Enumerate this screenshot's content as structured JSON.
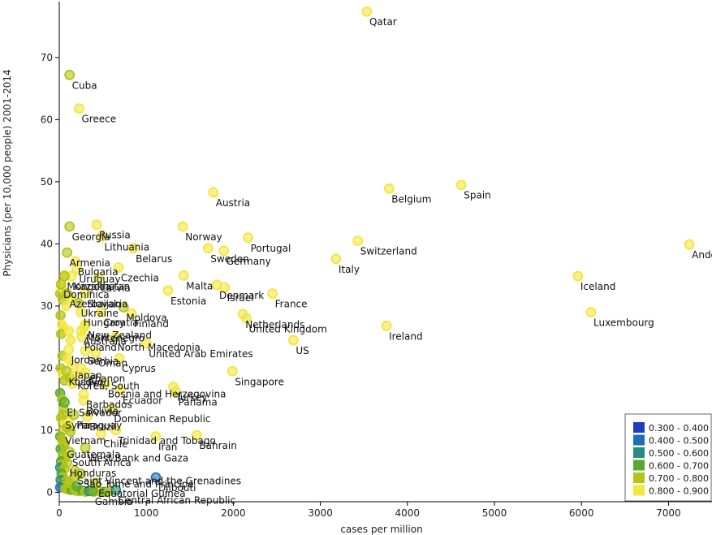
{
  "chart_data": {
    "type": "scatter",
    "title": "",
    "xlabel": "cases per million",
    "ylabel": "Physicians (per 10,000 people) 2001-2014",
    "xlim": [
      0,
      7500
    ],
    "ylim": [
      -1.5,
      79
    ],
    "xticks": [
      0,
      1000,
      2000,
      3000,
      4000,
      5000,
      6000,
      7000
    ],
    "yticks": [
      0,
      10,
      20,
      30,
      40,
      50,
      60,
      70
    ],
    "grid": false,
    "legend_position": "bottom-right",
    "legend": [
      {
        "label": "0.300 - 0.400",
        "color": "#1f3fbf"
      },
      {
        "label": "0.400 - 0.500",
        "color": "#1f6fb4"
      },
      {
        "label": "0.500 - 0.600",
        "color": "#2a8c7f"
      },
      {
        "label": "0.600 - 0.700",
        "color": "#57a82c"
      },
      {
        "label": "0.700 - 0.800",
        "color": "#b5c417"
      },
      {
        "label": "0.800 - 0.900",
        "color": "#f2e640"
      }
    ],
    "points": [
      {
        "label": "Qatar",
        "x": 3535,
        "y": 77.4,
        "c": 5
      },
      {
        "label": "Cuba",
        "x": 118,
        "y": 67.2,
        "c": 4
      },
      {
        "label": "Greece",
        "x": 228,
        "y": 61.8,
        "c": 5
      },
      {
        "label": "Spain",
        "x": 4620,
        "y": 49.5,
        "c": 5
      },
      {
        "label": "Belgium",
        "x": 3790,
        "y": 48.9,
        "c": 5
      },
      {
        "label": "Austria",
        "x": 1770,
        "y": 48.3,
        "c": 5
      },
      {
        "label": "Georgia",
        "x": 118,
        "y": 42.8,
        "c": 4
      },
      {
        "label": "Russia",
        "x": 430,
        "y": 43.1,
        "c": 5
      },
      {
        "label": "Norway",
        "x": 1420,
        "y": 42.8,
        "c": 5
      },
      {
        "label": "Lithuania",
        "x": 490,
        "y": 41.2,
        "c": 5
      },
      {
        "label": "Portugal",
        "x": 2170,
        "y": 41.0,
        "c": 5
      },
      {
        "label": "Switzerland",
        "x": 3430,
        "y": 40.5,
        "c": 5
      },
      {
        "label": "Andor",
        "x": 7240,
        "y": 39.9,
        "c": 5
      },
      {
        "label": "Belarus",
        "x": 850,
        "y": 39.3,
        "c": 5
      },
      {
        "label": "Sweden",
        "x": 1710,
        "y": 39.3,
        "c": 5
      },
      {
        "label": "Germany",
        "x": 1890,
        "y": 38.9,
        "c": 5
      },
      {
        "label": "Armenia",
        "x": 90,
        "y": 38.6,
        "c": 4
      },
      {
        "label": "Italy",
        "x": 3180,
        "y": 37.6,
        "c": 5
      },
      {
        "label": "Bulgaria",
        "x": 185,
        "y": 37.2,
        "c": 5
      },
      {
        "label": "Uruguay",
        "x": 200,
        "y": 36.0,
        "c": 5
      },
      {
        "label": "Czechia",
        "x": 680,
        "y": 36.2,
        "c": 5
      },
      {
        "label": "Kazakhstan",
        "x": 140,
        "y": 34.8,
        "c": 5
      },
      {
        "label": "Iceland",
        "x": 5960,
        "y": 34.8,
        "c": 5
      },
      {
        "label": "Malta",
        "x": 1430,
        "y": 34.9,
        "c": 5
      },
      {
        "label": "Denmark",
        "x": 1810,
        "y": 33.4,
        "c": 5
      },
      {
        "label": "Latvia",
        "x": 450,
        "y": 34.6,
        "c": 5
      },
      {
        "label": "Mongolia",
        "x": 60,
        "y": 34.8,
        "c": 4
      },
      {
        "label": "Dominica",
        "x": 20,
        "y": 33.5,
        "c": 4
      },
      {
        "label": "Azerbaijan",
        "x": 90,
        "y": 32.0,
        "c": 4
      },
      {
        "label": "Israel",
        "x": 1900,
        "y": 33.0,
        "c": 5
      },
      {
        "label": "France",
        "x": 2450,
        "y": 32.0,
        "c": 5
      },
      {
        "label": "Estonia",
        "x": 1250,
        "y": 32.5,
        "c": 5
      },
      {
        "label": "Slovakia",
        "x": 290,
        "y": 32.0,
        "c": 5
      },
      {
        "label": "Ukraine",
        "x": 220,
        "y": 30.5,
        "c": 4
      },
      {
        "label": "Hungary",
        "x": 250,
        "y": 29.0,
        "c": 5
      },
      {
        "label": "Croatia",
        "x": 480,
        "y": 29.0,
        "c": 5
      },
      {
        "label": "Moldova",
        "x": 740,
        "y": 29.8,
        "c": 4
      },
      {
        "label": "Finland",
        "x": 830,
        "y": 28.8,
        "c": 5
      },
      {
        "label": "Luxembourg",
        "x": 6110,
        "y": 29.0,
        "c": 5
      },
      {
        "label": "Netherlands",
        "x": 2110,
        "y": 28.7,
        "c": 5
      },
      {
        "label": "United Kingdom",
        "x": 2150,
        "y": 28.0,
        "c": 5
      },
      {
        "label": "Ireland",
        "x": 3760,
        "y": 26.8,
        "c": 5
      },
      {
        "label": "New Zealand",
        "x": 300,
        "y": 27.0,
        "c": 5
      },
      {
        "label": "Montenegro",
        "x": 280,
        "y": 26.5,
        "c": 5
      },
      {
        "label": "Australia",
        "x": 250,
        "y": 26.0,
        "c": 5
      },
      {
        "label": "Poland",
        "x": 260,
        "y": 25.0,
        "c": 5
      },
      {
        "label": "North Macedonia",
        "x": 640,
        "y": 25.0,
        "c": 5
      },
      {
        "label": "United Arab Emirates",
        "x": 1000,
        "y": 24.0,
        "c": 5
      },
      {
        "label": "US",
        "x": 2690,
        "y": 24.5,
        "c": 5
      },
      {
        "label": "Jordan",
        "x": 110,
        "y": 23.0,
        "c": 5
      },
      {
        "label": "Oman",
        "x": 420,
        "y": 22.5,
        "c": 5
      },
      {
        "label": "Serbia",
        "x": 300,
        "y": 22.8,
        "c": 5
      },
      {
        "label": "Cyprus",
        "x": 690,
        "y": 21.6,
        "c": 5
      },
      {
        "label": "Japan",
        "x": 150,
        "y": 20.5,
        "c": 5
      },
      {
        "label": "Lebanon",
        "x": 250,
        "y": 20.0,
        "c": 5
      },
      {
        "label": "Kosovo",
        "x": 80,
        "y": 19.5,
        "c": 4
      },
      {
        "label": "Peru",
        "x": 300,
        "y": 19.3,
        "c": 5
      },
      {
        "label": "Korea, South",
        "x": 180,
        "y": 18.8,
        "c": 5
      },
      {
        "label": "Singapore",
        "x": 1990,
        "y": 19.5,
        "c": 5
      },
      {
        "label": "Bosnia and Herzegovina",
        "x": 530,
        "y": 17.5,
        "c": 5
      },
      {
        "label": "Turkey",
        "x": 1310,
        "y": 17.0,
        "c": 5
      },
      {
        "label": "Panama",
        "x": 1340,
        "y": 16.2,
        "c": 5
      },
      {
        "label": "Ecuador",
        "x": 700,
        "y": 16.5,
        "c": 5
      },
      {
        "label": "Barbados",
        "x": 280,
        "y": 15.8,
        "c": 5
      },
      {
        "label": "El Salvador",
        "x": 60,
        "y": 14.5,
        "c": 3
      },
      {
        "label": "Bolivia",
        "x": 280,
        "y": 14.8,
        "c": 5
      },
      {
        "label": "Dominican Republic",
        "x": 600,
        "y": 13.5,
        "c": 5
      },
      {
        "label": "Syria",
        "x": 40,
        "y": 12.5,
        "c": 4
      },
      {
        "label": "Paraguay",
        "x": 170,
        "y": 12.5,
        "c": 4
      },
      {
        "label": "Brazil",
        "x": 320,
        "y": 12.2,
        "c": 5
      },
      {
        "label": "Vietnam",
        "x": 40,
        "y": 10.0,
        "c": 4
      },
      {
        "label": "Trinidad and Tobago",
        "x": 650,
        "y": 10.0,
        "c": 5
      },
      {
        "label": "Chile",
        "x": 480,
        "y": 9.5,
        "c": 5
      },
      {
        "label": "Iran",
        "x": 1110,
        "y": 9.0,
        "c": 5
      },
      {
        "label": "Bahrain",
        "x": 1580,
        "y": 9.2,
        "c": 5
      },
      {
        "label": "Guatemala",
        "x": 60,
        "y": 7.8,
        "c": 4
      },
      {
        "label": "West Bank and Gaza",
        "x": 300,
        "y": 7.2,
        "c": 4
      },
      {
        "label": "South Africa",
        "x": 120,
        "y": 6.5,
        "c": 4
      },
      {
        "label": "Honduras",
        "x": 90,
        "y": 4.8,
        "c": 4
      },
      {
        "label": "Saint Vincent and the Grenadines",
        "x": 180,
        "y": 3.5,
        "c": 4
      },
      {
        "label": "Sao Tome and Principe",
        "x": 250,
        "y": 3.0,
        "c": 4
      },
      {
        "label": "Equatorial Guinea",
        "x": 420,
        "y": 1.5,
        "c": 4
      },
      {
        "label": "Djibouti",
        "x": 1110,
        "y": 2.4,
        "c": 1
      },
      {
        "label": "Central African Republic",
        "x": 650,
        "y": 0.4,
        "c": 2
      },
      {
        "label": "Gambia",
        "x": 380,
        "y": 0.2,
        "c": 3
      }
    ],
    "cluster_points": [
      [
        10,
        32,
        4
      ],
      [
        25,
        33,
        5
      ],
      [
        40,
        31,
        4
      ],
      [
        15,
        28.5,
        4
      ],
      [
        30,
        27,
        5
      ],
      [
        50,
        26.5,
        5
      ],
      [
        20,
        25.5,
        4
      ],
      [
        35,
        22,
        4
      ],
      [
        15,
        20,
        4
      ],
      [
        40,
        19,
        5
      ],
      [
        60,
        18,
        4
      ],
      [
        10,
        16,
        3
      ],
      [
        30,
        15,
        4
      ],
      [
        50,
        13.5,
        4
      ],
      [
        20,
        12,
        4
      ],
      [
        60,
        11,
        5
      ],
      [
        10,
        9,
        3
      ],
      [
        30,
        8.5,
        4
      ],
      [
        50,
        8,
        4
      ],
      [
        15,
        7,
        3
      ],
      [
        40,
        6,
        4
      ],
      [
        70,
        5.5,
        4
      ],
      [
        20,
        5,
        3
      ],
      [
        35,
        4.5,
        4
      ],
      [
        10,
        4,
        2
      ],
      [
        60,
        3.8,
        4
      ],
      [
        25,
        3,
        3
      ],
      [
        45,
        2.5,
        4
      ],
      [
        15,
        2,
        2
      ],
      [
        80,
        1.8,
        4
      ],
      [
        30,
        1.2,
        3
      ],
      [
        55,
        1,
        4
      ],
      [
        10,
        0.8,
        1
      ],
      [
        70,
        0.6,
        4
      ],
      [
        100,
        0.5,
        4
      ],
      [
        140,
        0.4,
        3
      ],
      [
        180,
        0.3,
        4
      ],
      [
        220,
        0.2,
        4
      ],
      [
        260,
        0.3,
        3
      ],
      [
        300,
        0.1,
        4
      ],
      [
        340,
        0.2,
        2
      ],
      [
        400,
        0.1,
        4
      ],
      [
        460,
        0.2,
        4
      ],
      [
        520,
        0.1,
        3
      ],
      [
        580,
        0.2,
        4
      ],
      [
        120,
        1.5,
        4
      ],
      [
        160,
        2.2,
        4
      ],
      [
        200,
        1.0,
        3
      ],
      [
        90,
        10.5,
        4
      ],
      [
        130,
        9.8,
        4
      ],
      [
        110,
        11.5,
        5
      ],
      [
        150,
        17.5,
        5
      ],
      [
        120,
        18.5,
        4
      ],
      [
        100,
        21.5,
        5
      ],
      [
        130,
        24.5,
        5
      ],
      [
        110,
        26.0,
        5
      ],
      [
        80,
        30.0,
        5
      ],
      [
        140,
        31.2,
        5
      ],
      [
        60,
        35.0,
        5
      ]
    ]
  }
}
